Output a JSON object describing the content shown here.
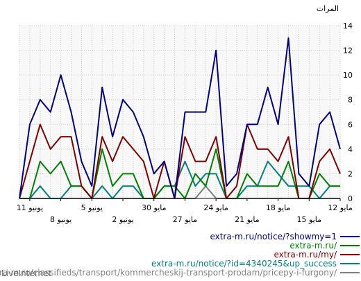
{
  "chart_data": {
    "type": "line",
    "ylabel": "المرات",
    "ylim": [
      0,
      14
    ],
    "yticks": [
      0,
      2,
      4,
      6,
      8,
      10,
      12,
      14
    ],
    "grid": true,
    "x_direction": "right-to-left",
    "x_tick_labels_upper": [
      "12 مايو",
      "18 مايو",
      "24 مايو",
      "30 مايو",
      "5 يونيو",
      "11 يونيو"
    ],
    "x_tick_labels_lower": [
      "15 مايو",
      "21 مايو",
      "27 مايو",
      "2 يونيو",
      "8 يونيو"
    ],
    "x": [
      "2024-06-12",
      "2024-06-11",
      "2024-06-10",
      "2024-06-09",
      "2024-06-08",
      "2024-06-07",
      "2024-06-06",
      "2024-06-05",
      "2024-06-04",
      "2024-06-03",
      "2024-06-02",
      "2024-06-01",
      "2024-05-31",
      "2024-05-30",
      "2024-05-29",
      "2024-05-28",
      "2024-05-27",
      "2024-05-26",
      "2024-05-25",
      "2024-05-24",
      "2024-05-23",
      "2024-05-22",
      "2024-05-21",
      "2024-05-20",
      "2024-05-19",
      "2024-05-18",
      "2024-05-17",
      "2024-05-16",
      "2024-05-15",
      "2024-05-14",
      "2024-05-13",
      "2024-05-12"
    ],
    "series": [
      {
        "name": "extra-m.ru/notice/?showmy=1",
        "color": "#000080",
        "values": [
          4,
          7,
          6,
          1,
          2,
          13,
          6,
          9,
          6,
          6,
          2,
          1,
          12,
          7,
          7,
          7,
          0,
          3,
          2,
          5,
          7,
          8,
          5,
          9,
          1,
          3,
          7,
          10,
          7,
          8,
          6,
          0
        ]
      },
      {
        "name": "extra-m.ru/",
        "color": "#008000",
        "values": [
          1,
          1,
          2,
          0,
          0,
          3,
          1,
          1,
          1,
          2,
          0,
          0,
          4,
          1,
          2,
          0,
          1,
          1,
          0,
          0,
          2,
          2,
          1,
          4,
          0,
          1,
          1,
          3,
          2,
          3,
          0,
          0
        ]
      },
      {
        "name": "extra-m.ru/my/",
        "color": "#800000",
        "values": [
          2,
          4,
          3,
          0,
          0,
          5,
          3,
          4,
          4,
          6,
          1,
          0,
          5,
          3,
          3,
          5,
          0,
          3,
          0,
          3,
          4,
          5,
          3,
          5,
          0,
          1,
          5,
          5,
          4,
          6,
          3,
          0
        ]
      },
      {
        "name": "extra-m.ru/notice/?id=4340245&up_success",
        "color": "#008080",
        "values": [
          1,
          1,
          0,
          1,
          1,
          1,
          2,
          3,
          1,
          1,
          0,
          0,
          2,
          2,
          1,
          3,
          1,
          1,
          0,
          0,
          1,
          1,
          0,
          1,
          0,
          1,
          1,
          0,
          0,
          1,
          0,
          0
        ]
      },
      {
        "name": "extra-m.ru/classifieds/transport/kommercheskij-transport-prodam/pricepy-i-furgony/",
        "color": "#808080",
        "values": [
          0,
          0,
          0,
          0,
          0,
          0,
          0,
          0,
          0,
          0,
          0,
          0,
          0,
          1,
          0,
          0,
          0,
          0,
          0,
          0,
          0,
          0,
          0,
          0,
          0,
          0,
          0,
          0,
          0,
          0,
          0,
          0
        ]
      }
    ]
  },
  "footer": {
    "site": "LiveInternet"
  }
}
